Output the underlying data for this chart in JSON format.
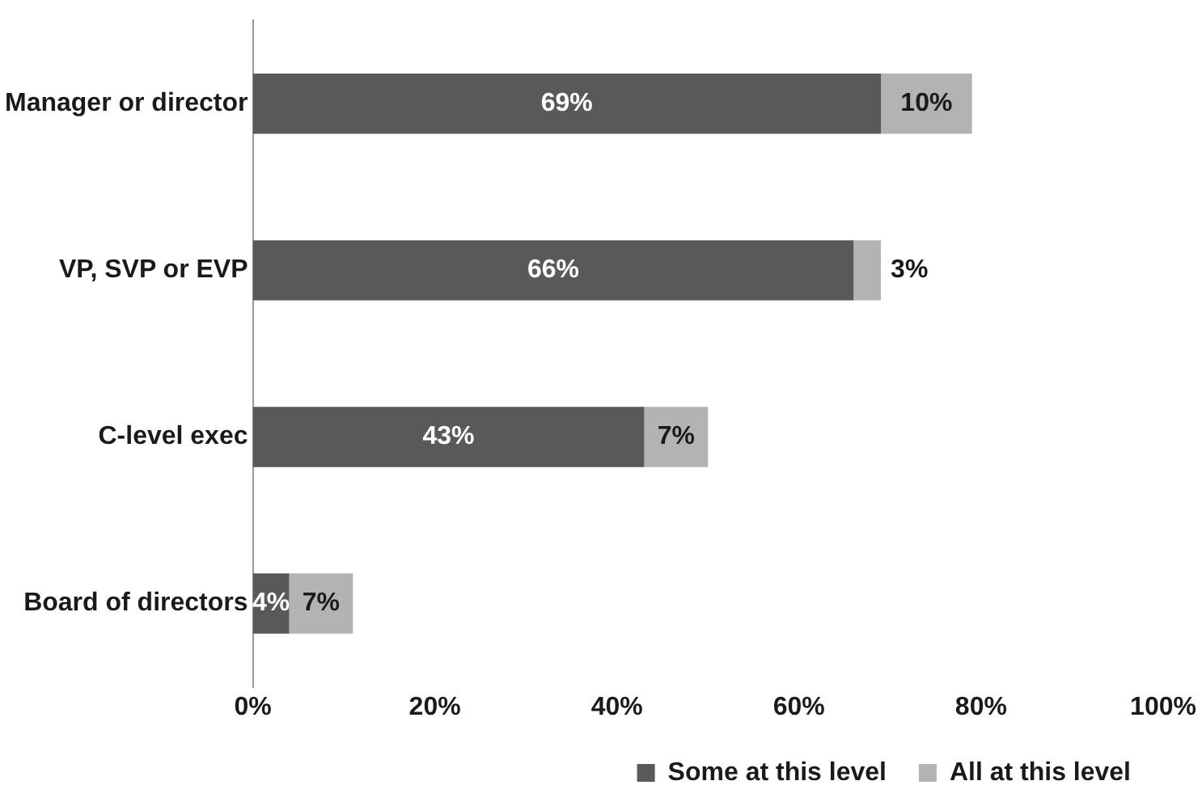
{
  "chart_data": {
    "type": "bar",
    "orientation": "horizontal",
    "stacked": true,
    "categories": [
      "Manager or director",
      "VP, SVP or EVP",
      "C-level exec",
      "Board of directors"
    ],
    "series": [
      {
        "name": "Some at this level",
        "color": "#595959",
        "values": [
          69,
          66,
          43,
          4
        ],
        "value_labels": [
          "69%",
          "66%",
          "43%",
          "4%"
        ]
      },
      {
        "name": "All at this level",
        "color": "#b3b3b3",
        "values": [
          10,
          3,
          7,
          7
        ],
        "value_labels": [
          "10%",
          "3%",
          "7%",
          "7%"
        ]
      }
    ],
    "xlim": [
      0,
      100
    ],
    "xticks": [
      {
        "value": 0,
        "label": "0%"
      },
      {
        "value": 20,
        "label": "20%"
      },
      {
        "value": 40,
        "label": "40%"
      },
      {
        "value": 60,
        "label": "60%"
      },
      {
        "value": 80,
        "label": "80%"
      },
      {
        "value": 100,
        "label": "100%"
      }
    ],
    "grid": false,
    "legend": "bottom right"
  }
}
